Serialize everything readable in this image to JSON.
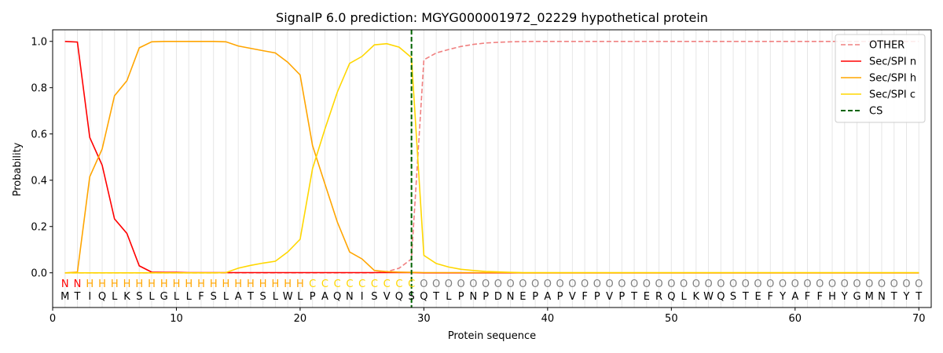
{
  "chart_data": {
    "type": "line",
    "title": "SignalP 6.0 prediction: MGYG000001972_02229 hypothetical protein",
    "xlabel": "Protein sequence",
    "ylabel": "Probability",
    "xlim": [
      0,
      71
    ],
    "ylim": [
      -0.15,
      1.05
    ],
    "xticks": [
      0,
      10,
      20,
      30,
      40,
      50,
      60,
      70
    ],
    "yticks": [
      "0.0",
      "0.2",
      "0.4",
      "0.6",
      "0.8",
      "1.0"
    ],
    "vertical_grid": true,
    "legend_position": "top-right",
    "sequence": [
      "M",
      "T",
      "I",
      "Q",
      "L",
      "K",
      "S",
      "L",
      "G",
      "L",
      "L",
      "F",
      "S",
      "L",
      "A",
      "T",
      "S",
      "L",
      "W",
      "L",
      "P",
      "A",
      "Q",
      "N",
      "I",
      "S",
      "V",
      "Q",
      "S",
      "Q",
      "T",
      "L",
      "P",
      "N",
      "P",
      "D",
      "N",
      "E",
      "P",
      "A",
      "P",
      "V",
      "F",
      "P",
      "V",
      "P",
      "T",
      "E",
      "R",
      "Q",
      "L",
      "K",
      "W",
      "Q",
      "S",
      "T",
      "E",
      "F",
      "Y",
      "A",
      "F",
      "F",
      "H",
      "Y",
      "G",
      "M",
      "N",
      "T",
      "Y",
      "T"
    ],
    "labels": [
      "N",
      "N",
      "H",
      "H",
      "H",
      "H",
      "H",
      "H",
      "H",
      "H",
      "H",
      "H",
      "H",
      "H",
      "H",
      "H",
      "H",
      "H",
      "H",
      "H",
      "C",
      "C",
      "C",
      "C",
      "C",
      "C",
      "C",
      "C",
      "C",
      "O",
      "O",
      "O",
      "O",
      "O",
      "O",
      "O",
      "O",
      "O",
      "O",
      "O",
      "O",
      "O",
      "O",
      "O",
      "O",
      "O",
      "O",
      "O",
      "O",
      "O",
      "O",
      "O",
      "O",
      "O",
      "O",
      "O",
      "O",
      "O",
      "O",
      "O",
      "O",
      "O",
      "O",
      "O",
      "O",
      "O",
      "O",
      "O",
      "O",
      "O"
    ],
    "label_colors": {
      "N": "#ff0000",
      "H": "#ffa500",
      "C": "#ffd700",
      "O": "#808080"
    },
    "series": [
      {
        "name": "OTHER",
        "color": "#f08080",
        "dash": true,
        "values": [
          0.0,
          0.0,
          0.0,
          0.0,
          0.0,
          0.0,
          0.0,
          0.0,
          0.0,
          0.0,
          0.0,
          0.0,
          0.0,
          0.0,
          0.0,
          0.0,
          0.0,
          0.0,
          0.0,
          0.0,
          0.0,
          0.0,
          0.0,
          0.0,
          0.0,
          0.0,
          0.005,
          0.02,
          0.06,
          0.92,
          0.95,
          0.965,
          0.978,
          0.987,
          0.993,
          0.996,
          0.998,
          0.999,
          1.0,
          1.0,
          1.0,
          1.0,
          1.0,
          1.0,
          1.0,
          1.0,
          1.0,
          1.0,
          1.0,
          1.0,
          1.0,
          1.0,
          1.0,
          1.0,
          1.0,
          1.0,
          1.0,
          1.0,
          1.0,
          1.0,
          1.0,
          1.0,
          1.0,
          1.0,
          1.0,
          1.0,
          1.0,
          1.0,
          1.0,
          1.0
        ]
      },
      {
        "name": "Sec/SPI n",
        "color": "#ff0000",
        "dash": false,
        "values": [
          1.0,
          0.997,
          0.585,
          0.465,
          0.233,
          0.17,
          0.03,
          0.003,
          0.002,
          0.002,
          0.001,
          0.001,
          0.001,
          0.001,
          0.001,
          0.001,
          0.001,
          0.001,
          0.001,
          0.001,
          0.001,
          0.001,
          0.001,
          0.001,
          0.001,
          0.001,
          0.001,
          0.001,
          0.001,
          0.0,
          0.0,
          0.0,
          0.0,
          0.0,
          0.0,
          0.0,
          0.0,
          0.0,
          0.0,
          0.0,
          0.0,
          0.0,
          0.0,
          0.0,
          0.0,
          0.0,
          0.0,
          0.0,
          0.0,
          0.0,
          0.0,
          0.0,
          0.0,
          0.0,
          0.0,
          0.0,
          0.0,
          0.0,
          0.0,
          0.0,
          0.0,
          0.0,
          0.0,
          0.0,
          0.0,
          0.0,
          0.0,
          0.0,
          0.0,
          0.0
        ]
      },
      {
        "name": "Sec/SPI h",
        "color": "#ffa500",
        "dash": false,
        "values": [
          0.0,
          0.003,
          0.415,
          0.535,
          0.765,
          0.83,
          0.972,
          0.998,
          1.0,
          1.0,
          1.0,
          1.0,
          1.0,
          0.998,
          0.98,
          0.97,
          0.96,
          0.95,
          0.91,
          0.855,
          0.55,
          0.385,
          0.22,
          0.09,
          0.06,
          0.01,
          0.005,
          0.003,
          0.002,
          0.001,
          0.001,
          0.001,
          0.001,
          0.001,
          0.001,
          0.001,
          0.001,
          0.0,
          0.0,
          0.0,
          0.0,
          0.0,
          0.0,
          0.0,
          0.0,
          0.0,
          0.0,
          0.0,
          0.0,
          0.0,
          0.0,
          0.0,
          0.0,
          0.0,
          0.0,
          0.0,
          0.0,
          0.0,
          0.0,
          0.0,
          0.0,
          0.0,
          0.0,
          0.0,
          0.0,
          0.0,
          0.0,
          0.0,
          0.0,
          0.0
        ]
      },
      {
        "name": "Sec/SPI c",
        "color": "#ffd700",
        "dash": false,
        "values": [
          0.0,
          0.0,
          0.0,
          0.0,
          0.0,
          0.0,
          0.0,
          0.0,
          0.0,
          0.0,
          0.0,
          0.0,
          0.0,
          0.001,
          0.02,
          0.032,
          0.042,
          0.05,
          0.09,
          0.145,
          0.45,
          0.62,
          0.78,
          0.905,
          0.935,
          0.985,
          0.99,
          0.975,
          0.93,
          0.075,
          0.04,
          0.025,
          0.015,
          0.01,
          0.006,
          0.004,
          0.002,
          0.001,
          0.001,
          0.001,
          0.001,
          0.001,
          0.001,
          0.001,
          0.001,
          0.001,
          0.001,
          0.001,
          0.001,
          0.001,
          0.001,
          0.001,
          0.001,
          0.001,
          0.001,
          0.001,
          0.001,
          0.001,
          0.001,
          0.001,
          0.001,
          0.001,
          0.001,
          0.001,
          0.001,
          0.001,
          0.001,
          0.001,
          0.001,
          0.001
        ]
      }
    ],
    "cs": {
      "name": "CS",
      "x": 29,
      "color": "#006400"
    }
  }
}
